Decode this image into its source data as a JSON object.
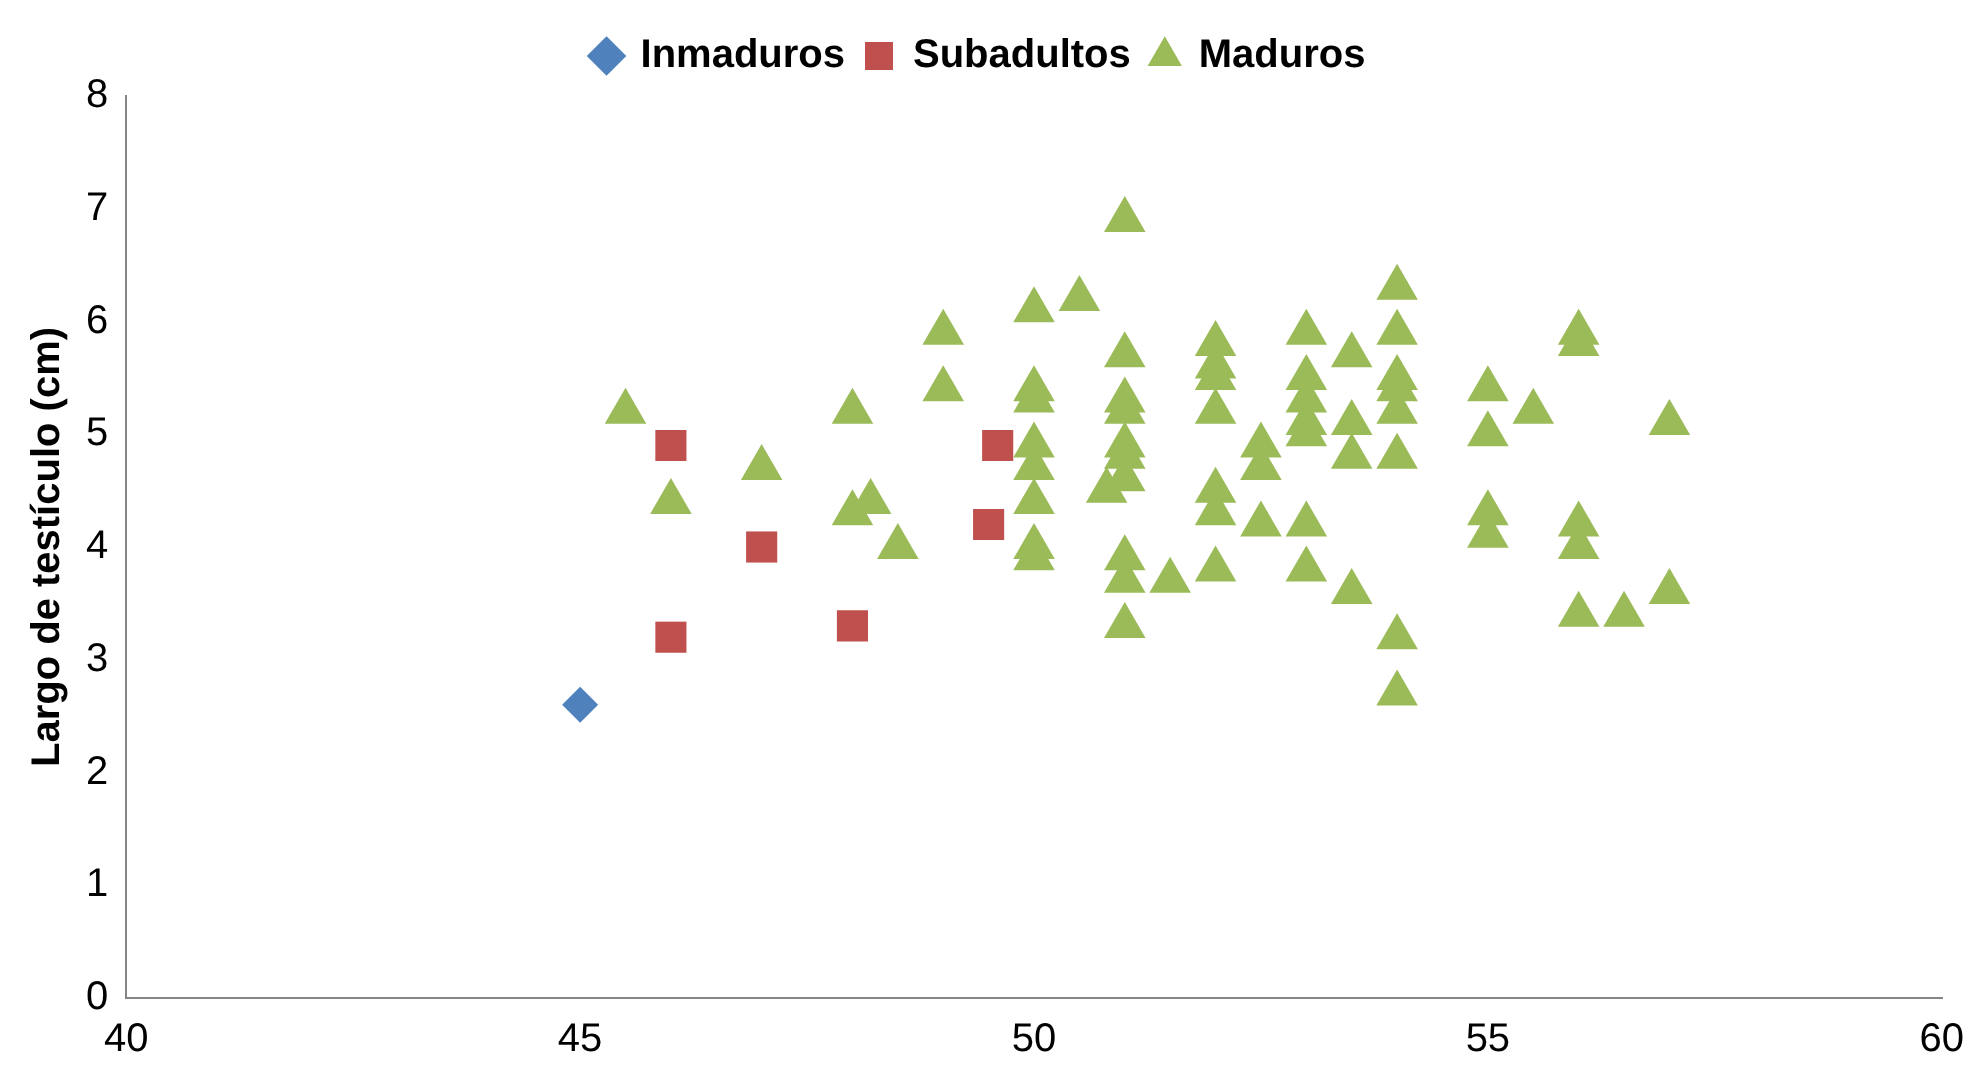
{
  "chart_data": {
    "type": "scatter",
    "ylabel": "Largo de testículo (cm)",
    "xlim": [
      40,
      60
    ],
    "xticks": [
      40,
      45,
      50,
      55,
      60
    ],
    "ylim": [
      0,
      8
    ],
    "yticks": [
      0,
      1,
      2,
      3,
      4,
      5,
      6,
      7,
      8
    ],
    "grid": false,
    "legend": "top",
    "series": [
      {
        "name": "Inmaduros",
        "color": "#4f81bd",
        "marker": "diamond",
        "x": [
          45
        ],
        "values": [
          2.6
        ]
      },
      {
        "name": "Subadultos",
        "color": "#c0504d",
        "marker": "square",
        "x": [
          46,
          46,
          47,
          48,
          49.5,
          49.6
        ],
        "values": [
          4.9,
          3.2,
          4.0,
          3.3,
          4.2,
          4.9
        ]
      },
      {
        "name": "Maduros",
        "color": "#9bbb59",
        "marker": "triangle",
        "x": [
          45.5,
          46,
          47,
          48,
          48,
          48.2,
          48.5,
          49,
          49,
          50,
          50,
          50,
          50,
          50,
          50,
          50,
          50,
          50.5,
          50.8,
          51,
          51,
          51,
          51,
          51,
          51,
          51,
          51,
          51,
          51,
          51.5,
          52,
          52,
          52,
          52,
          52,
          52,
          52,
          52.5,
          52.5,
          52.5,
          53,
          53,
          53,
          53,
          53,
          53,
          53,
          53.5,
          53.5,
          53.5,
          53.5,
          54,
          54,
          54,
          54,
          54,
          54,
          54,
          54,
          55,
          55,
          55,
          55,
          55.5,
          56,
          56,
          56,
          56,
          56,
          56.5,
          57,
          57
        ],
        "values": [
          5.2,
          4.4,
          4.7,
          5.2,
          4.3,
          4.4,
          4.0,
          5.9,
          5.4,
          6.1,
          5.4,
          5.3,
          4.9,
          4.7,
          4.4,
          4.0,
          3.9,
          6.2,
          4.5,
          6.9,
          5.7,
          5.3,
          5.2,
          4.9,
          4.8,
          4.6,
          3.9,
          3.7,
          3.3,
          3.7,
          5.8,
          5.6,
          5.5,
          5.2,
          4.5,
          4.3,
          3.8,
          4.9,
          4.7,
          4.2,
          5.9,
          5.5,
          5.3,
          5.1,
          5.0,
          4.2,
          3.8,
          5.7,
          5.1,
          4.8,
          3.6,
          6.3,
          5.9,
          5.5,
          5.4,
          5.2,
          4.8,
          3.2,
          2.7,
          5.4,
          5.0,
          4.3,
          4.1,
          5.2,
          5.9,
          5.8,
          4.2,
          4.0,
          3.4,
          3.4,
          5.1,
          3.6
        ]
      }
    ]
  }
}
